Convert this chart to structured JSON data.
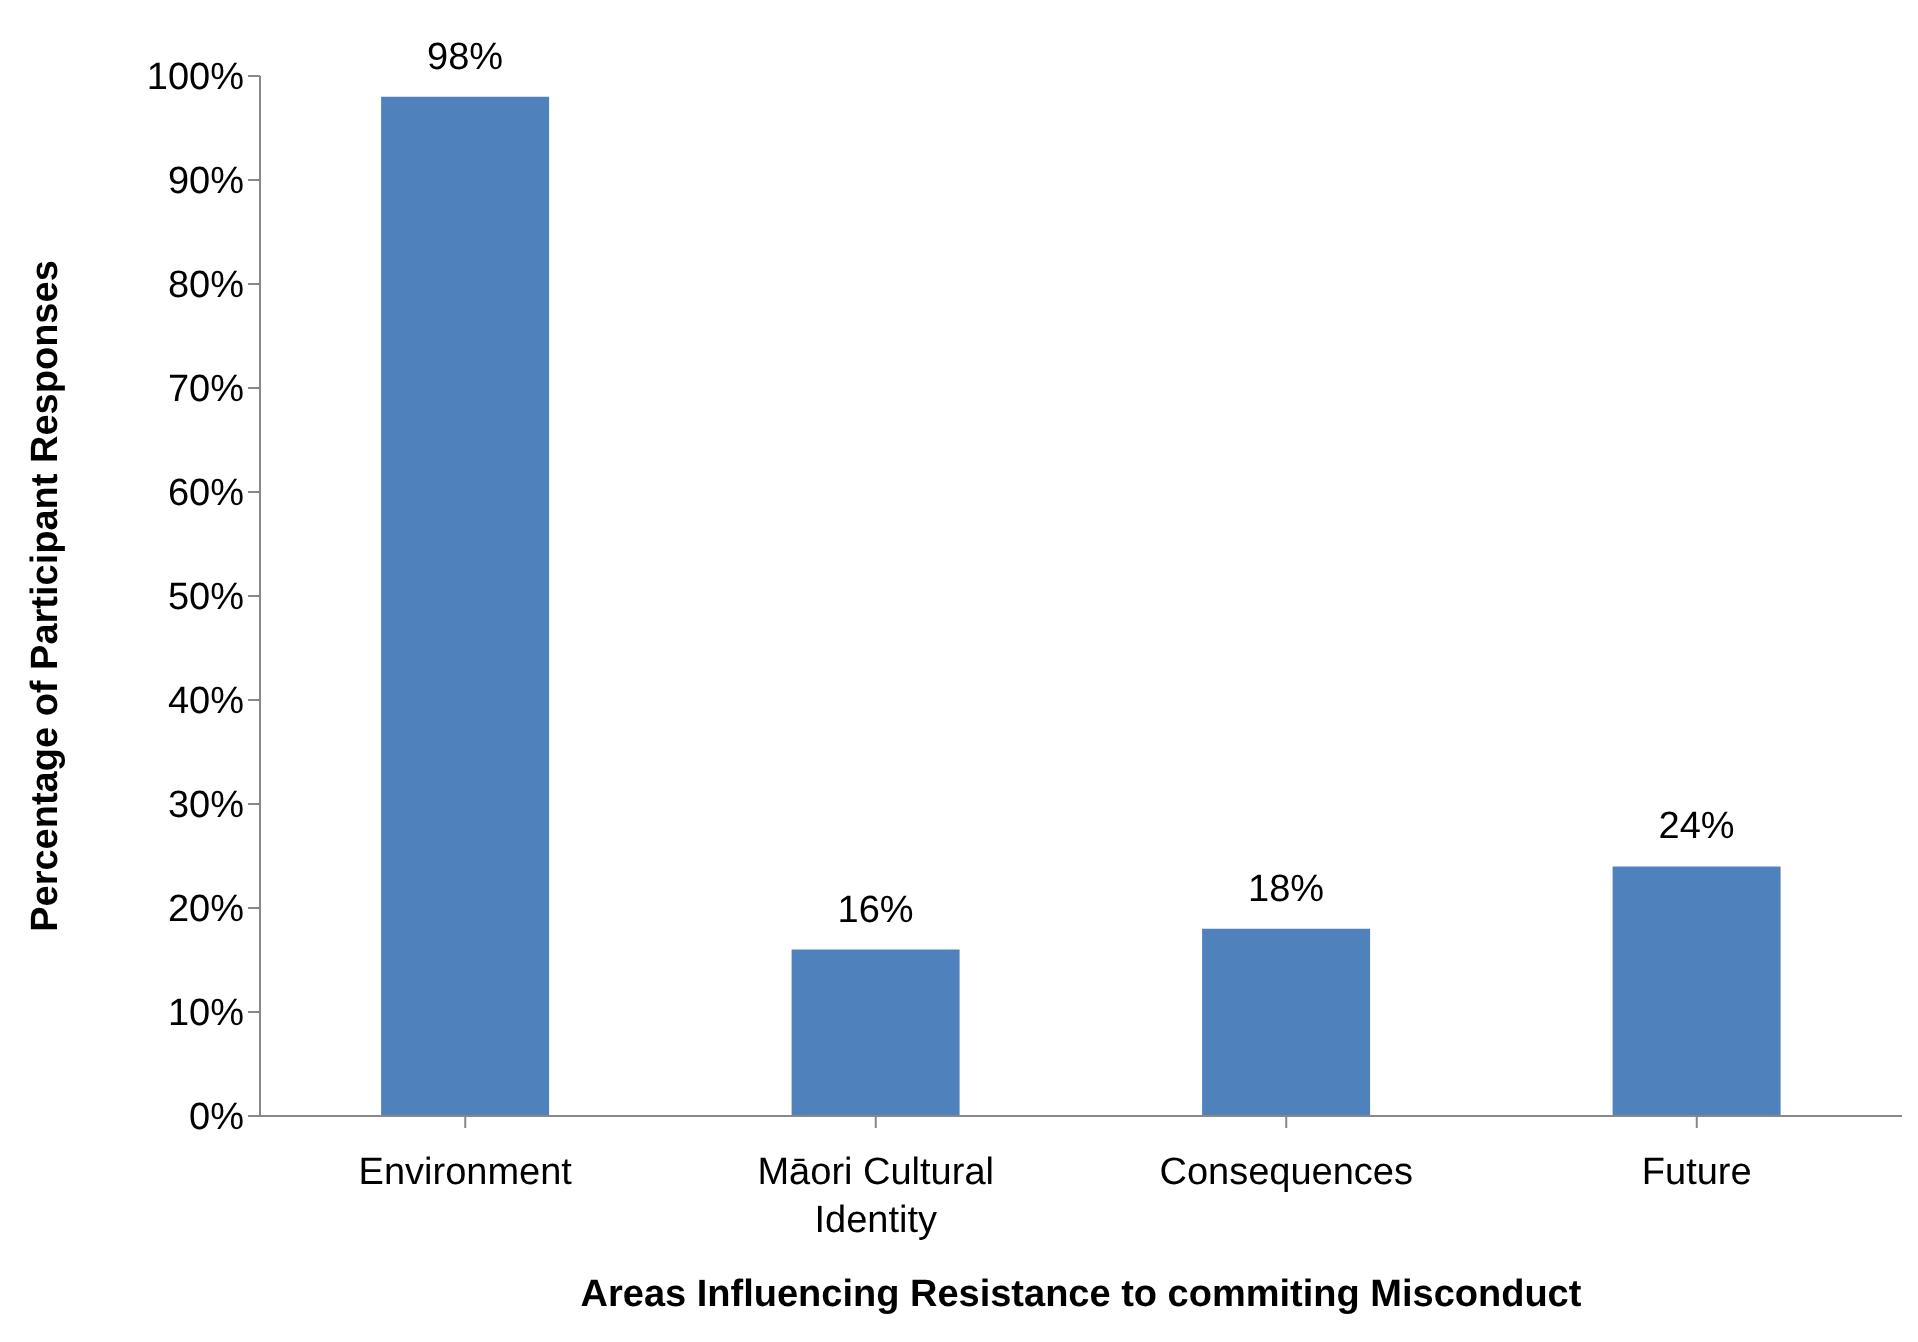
{
  "chart_data": {
    "type": "bar",
    "xlabel": "Areas Influencing Resistance to  commiting Misconduct",
    "ylabel": "Percentage of Participant Responses",
    "categories": [
      "Environment",
      "Māori Cultural Identity",
      "Consequences",
      "Future"
    ],
    "values": [
      98,
      16,
      18,
      24
    ],
    "value_labels": [
      "98%",
      "16%",
      "18%",
      "24%"
    ],
    "color": "#4f81bd",
    "ylim": [
      0,
      100
    ],
    "yticks": [
      {
        "value": 0,
        "label": "0%"
      },
      {
        "value": 10,
        "label": "10%"
      },
      {
        "value": 20,
        "label": "20%"
      },
      {
        "value": 30,
        "label": "30%"
      },
      {
        "value": 40,
        "label": "40%"
      },
      {
        "value": 50,
        "label": "50%"
      },
      {
        "value": 60,
        "label": "60%"
      },
      {
        "value": 70,
        "label": "70%"
      },
      {
        "value": 80,
        "label": "80%"
      },
      {
        "value": 90,
        "label": "90%"
      },
      {
        "value": 100,
        "label": "100%"
      }
    ],
    "grid": false,
    "legend": false
  }
}
